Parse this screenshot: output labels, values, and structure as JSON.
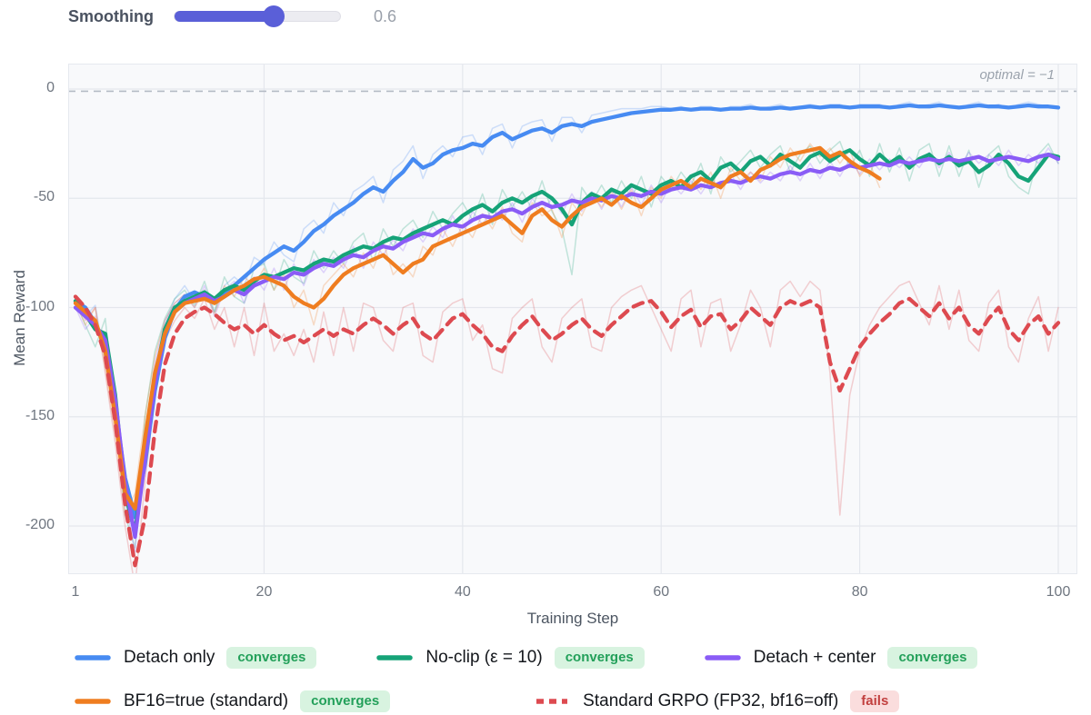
{
  "slider": {
    "label": "Smoothing",
    "value": "0.6",
    "fraction": 0.6,
    "accent_color": "#5a5fd8",
    "track_color": "#ececf1"
  },
  "chart_data": {
    "type": "line",
    "xlabel": "Training Step",
    "ylabel": "Mean Reward",
    "xticks": [
      1,
      20,
      40,
      60,
      80,
      100
    ],
    "yticks": [
      0,
      -50,
      -100,
      -150,
      -200
    ],
    "xlim": [
      0.4,
      102
    ],
    "ylim": [
      -222,
      11
    ],
    "grid": true,
    "panel_bg": "#f8f9fb",
    "grid_color": "#e4e7ed",
    "optimal_line": {
      "value": -1,
      "label": "optimal = −1",
      "color": "#b4bac4"
    },
    "x_start": 1,
    "series": [
      {
        "name": "Detach only",
        "badge": "converges",
        "color": "#478bf2",
        "dashed": false,
        "values": [
          -97,
          -100,
          -107,
          -118,
          -145,
          -178,
          -196,
          -172,
          -138,
          -114,
          -101,
          -95,
          -93,
          -95,
          -97,
          -94,
          -90,
          -86,
          -82,
          -78,
          -75,
          -72,
          -74,
          -70,
          -65,
          -62,
          -58,
          -55,
          -52,
          -48,
          -45,
          -47,
          -42,
          -38,
          -32,
          -36,
          -34,
          -30,
          -28,
          -27,
          -25,
          -26,
          -22,
          -20,
          -23,
          -21,
          -19,
          -18,
          -20,
          -17,
          -16,
          -17,
          -15,
          -14,
          -13,
          -12,
          -11,
          -10.5,
          -10,
          -9.5,
          -9.5,
          -9,
          -9.5,
          -9,
          -9,
          -9.5,
          -9,
          -9,
          -8.5,
          -9,
          -9,
          -8.5,
          -9,
          -8.5,
          -8,
          -8.5,
          -8,
          -8,
          -8.5,
          -8,
          -8,
          -8,
          -8.5,
          -8,
          -7.5,
          -8,
          -8,
          -7.5,
          -8,
          -8.5,
          -8,
          -7.5,
          -8,
          -8,
          -8.5,
          -8,
          -7.5,
          -8,
          -8,
          -8.5
        ],
        "raw": [
          -97,
          -104,
          -99,
          -125,
          -152,
          -185,
          -200,
          -160,
          -130,
          -108,
          -96,
          -90,
          -97,
          -92,
          -102,
          -90,
          -86,
          -90,
          -77,
          -80,
          -70,
          -76,
          -79,
          -64,
          -60,
          -66,
          -52,
          -58,
          -47,
          -44,
          -40,
          -52,
          -37,
          -33,
          -26,
          -41,
          -30,
          -26,
          -31,
          -22,
          -21,
          -30,
          -18,
          -16,
          -27,
          -17,
          -15,
          -14,
          -24,
          -13,
          -13,
          -20,
          -12,
          -11,
          -10,
          -9,
          -9,
          -9,
          -8,
          -8,
          -9,
          -8,
          -10,
          -8,
          -8,
          -10,
          -8,
          -8,
          -7,
          -9,
          -8,
          -7,
          -9,
          -8,
          -7,
          -8,
          -7,
          -7,
          -9,
          -7,
          -7,
          -7,
          -9,
          -7,
          -6,
          -8,
          -7,
          -6,
          -8,
          -9,
          -7,
          -6,
          -8,
          -7,
          -9,
          -7,
          -6,
          -7,
          -8,
          -9
        ]
      },
      {
        "name": "No-clip (ε = 10)",
        "badge": "converges",
        "color": "#16a378",
        "dashed": false,
        "values": [
          -97,
          -103,
          -110,
          -112,
          -140,
          -185,
          -203,
          -168,
          -132,
          -110,
          -100,
          -97,
          -95,
          -93,
          -96,
          -92,
          -90,
          -92,
          -88,
          -85,
          -86,
          -84,
          -82,
          -83,
          -80,
          -78,
          -79,
          -76,
          -74,
          -72,
          -73,
          -70,
          -68,
          -69,
          -66,
          -64,
          -62,
          -60,
          -62,
          -58,
          -55,
          -53,
          -56,
          -52,
          -50,
          -52,
          -49,
          -47,
          -50,
          -55,
          -62,
          -52,
          -48,
          -50,
          -46,
          -48,
          -44,
          -46,
          -48,
          -44,
          -42,
          -45,
          -40,
          -38,
          -42,
          -36,
          -34,
          -38,
          -33,
          -31,
          -35,
          -30,
          -33,
          -36,
          -31,
          -29,
          -33,
          -30,
          -28,
          -32,
          -35,
          -30,
          -34,
          -31,
          -36,
          -32,
          -30,
          -34,
          -31,
          -35,
          -33,
          -38,
          -35,
          -30,
          -34,
          -40,
          -42,
          -36,
          -30,
          -31
        ],
        "raw": [
          -97,
          -108,
          -118,
          -105,
          -150,
          -195,
          -210,
          -150,
          -120,
          -105,
          -96,
          -92,
          -99,
          -88,
          -102,
          -86,
          -95,
          -98,
          -82,
          -80,
          -92,
          -78,
          -86,
          -89,
          -74,
          -82,
          -74,
          -80,
          -70,
          -66,
          -79,
          -64,
          -72,
          -64,
          -60,
          -68,
          -56,
          -64,
          -57,
          -52,
          -60,
          -48,
          -62,
          -46,
          -54,
          -47,
          -55,
          -42,
          -56,
          -64,
          -85,
          -45,
          -52,
          -44,
          -52,
          -42,
          -50,
          -40,
          -54,
          -40,
          -46,
          -38,
          -44,
          -34,
          -48,
          -31,
          -38,
          -33,
          -28,
          -36,
          -30,
          -26,
          -38,
          -30,
          -26,
          -34,
          -28,
          -24,
          -36,
          -28,
          -40,
          -25,
          -38,
          -27,
          -42,
          -28,
          -25,
          -40,
          -26,
          -40,
          -28,
          -45,
          -30,
          -26,
          -40,
          -45,
          -48,
          -30,
          -25,
          -34
        ]
      },
      {
        "name": "Detach + center",
        "badge": "converges",
        "color": "#8a5cf6",
        "dashed": false,
        "values": [
          -100,
          -104,
          -108,
          -115,
          -142,
          -180,
          -205,
          -170,
          -135,
          -112,
          -102,
          -98,
          -96,
          -94,
          -97,
          -95,
          -92,
          -94,
          -90,
          -88,
          -86,
          -87,
          -84,
          -85,
          -82,
          -80,
          -81,
          -78,
          -76,
          -77,
          -74,
          -72,
          -73,
          -70,
          -68,
          -66,
          -67,
          -64,
          -62,
          -63,
          -60,
          -58,
          -59,
          -56,
          -55,
          -57,
          -54,
          -52,
          -54,
          -53,
          -51,
          -52,
          -50,
          -51,
          -49,
          -50,
          -48,
          -49,
          -47,
          -48,
          -46,
          -45,
          -46,
          -44,
          -45,
          -43,
          -42,
          -43,
          -41,
          -40,
          -41,
          -39,
          -38,
          -39,
          -37,
          -38,
          -36,
          -37,
          -35,
          -36,
          -35,
          -34,
          -35,
          -33,
          -34,
          -33,
          -32,
          -33,
          -32,
          -33,
          -32,
          -31,
          -33,
          -32,
          -31,
          -32,
          -33,
          -31,
          -30,
          -32
        ],
        "raw": [
          -100,
          -110,
          -104,
          -122,
          -150,
          -188,
          -212,
          -158,
          -125,
          -106,
          -98,
          -94,
          -100,
          -90,
          -104,
          -92,
          -88,
          -98,
          -86,
          -92,
          -82,
          -92,
          -80,
          -90,
          -78,
          -84,
          -77,
          -82,
          -72,
          -82,
          -70,
          -76,
          -69,
          -74,
          -64,
          -70,
          -63,
          -68,
          -58,
          -67,
          -56,
          -62,
          -55,
          -60,
          -52,
          -61,
          -50,
          -56,
          -50,
          -57,
          -48,
          -56,
          -47,
          -55,
          -46,
          -54,
          -45,
          -53,
          -44,
          -52,
          -43,
          -48,
          -42,
          -48,
          -41,
          -46,
          -39,
          -46,
          -38,
          -43,
          -38,
          -42,
          -35,
          -42,
          -34,
          -41,
          -33,
          -40,
          -32,
          -39,
          -32,
          -37,
          -32,
          -36,
          -31,
          -36,
          -29,
          -36,
          -29,
          -36,
          -29,
          -34,
          -30,
          -35,
          -28,
          -35,
          -30,
          -34,
          -27,
          -34
        ]
      },
      {
        "name": "BF16=true (standard)",
        "badge": "converges",
        "color": "#ef7d20",
        "dashed": false,
        "values": [
          -98,
          -102,
          -106,
          -120,
          -150,
          -185,
          -192,
          -160,
          -130,
          -112,
          -102,
          -98,
          -97,
          -96,
          -98,
          -95,
          -92,
          -90,
          -87,
          -86,
          -88,
          -90,
          -95,
          -98,
          -100,
          -96,
          -90,
          -85,
          -82,
          -80,
          -78,
          -76,
          -80,
          -84,
          -80,
          -78,
          -72,
          -70,
          -68,
          -66,
          -64,
          -62,
          -60,
          -58,
          -62,
          -66,
          -58,
          -55,
          -60,
          -63,
          -58,
          -54,
          -52,
          -50,
          -53,
          -49,
          -52,
          -54,
          -50,
          -46,
          -44,
          -42,
          -45,
          -41,
          -43,
          -45,
          -40,
          -38,
          -42,
          -37,
          -35,
          -32,
          -30,
          -29,
          -28,
          -27,
          -31,
          -29,
          -33,
          -36,
          -38,
          -41
        ],
        "raw": [
          -98,
          -108,
          -100,
          -128,
          -158,
          -195,
          -185,
          -150,
          -122,
          -106,
          -98,
          -94,
          -100,
          -92,
          -103,
          -90,
          -95,
          -86,
          -90,
          -82,
          -92,
          -85,
          -100,
          -92,
          -108,
          -90,
          -85,
          -80,
          -86,
          -75,
          -82,
          -70,
          -85,
          -80,
          -86,
          -72,
          -76,
          -64,
          -72,
          -62,
          -68,
          -57,
          -64,
          -54,
          -66,
          -70,
          -52,
          -58,
          -55,
          -68,
          -52,
          -58,
          -48,
          -54,
          -47,
          -55,
          -46,
          -58,
          -45,
          -50,
          -40,
          -46,
          -40,
          -46,
          -38,
          -50,
          -36,
          -42,
          -38,
          -42,
          -31,
          -36,
          -27,
          -33,
          -25,
          -31,
          -27,
          -34,
          -28,
          -40,
          -34,
          -45
        ]
      },
      {
        "name": "Standard GRPO (FP32, bf16=off)",
        "badge": "fails",
        "color": "#dd4a50",
        "dashed": true,
        "values": [
          -95,
          -100,
          -108,
          -122,
          -152,
          -190,
          -218,
          -196,
          -156,
          -126,
          -112,
          -105,
          -102,
          -100,
          -103,
          -107,
          -110,
          -108,
          -112,
          -108,
          -112,
          -115,
          -113,
          -116,
          -113,
          -110,
          -113,
          -110,
          -112,
          -108,
          -105,
          -108,
          -112,
          -108,
          -105,
          -112,
          -115,
          -110,
          -105,
          -103,
          -108,
          -112,
          -118,
          -120,
          -113,
          -108,
          -104,
          -110,
          -115,
          -112,
          -108,
          -105,
          -110,
          -113,
          -108,
          -104,
          -100,
          -98,
          -97,
          -102,
          -109,
          -104,
          -101,
          -109,
          -104,
          -103,
          -110,
          -106,
          -100,
          -104,
          -108,
          -100,
          -97,
          -99,
          -97,
          -100,
          -125,
          -138,
          -128,
          -118,
          -112,
          -107,
          -103,
          -98,
          -96,
          -100,
          -104,
          -98,
          -105,
          -100,
          -108,
          -112,
          -105,
          -100,
          -110,
          -115,
          -108,
          -104,
          -112,
          -107
        ],
        "raw": [
          -95,
          -106,
          -100,
          -130,
          -162,
          -200,
          -228,
          -180,
          -140,
          -115,
          -106,
          -100,
          -105,
          -96,
          -110,
          -100,
          -118,
          -100,
          -122,
          -98,
          -120,
          -112,
          -122,
          -110,
          -125,
          -102,
          -122,
          -100,
          -120,
          -98,
          -100,
          -115,
          -120,
          -100,
          -98,
          -122,
          -125,
          -102,
          -98,
          -96,
          -115,
          -108,
          -128,
          -130,
          -105,
          -100,
          -96,
          -118,
          -125,
          -105,
          -100,
          -96,
          -118,
          -120,
          -100,
          -95,
          -92,
          -90,
          -100,
          -110,
          -120,
          -96,
          -92,
          -118,
          -98,
          -96,
          -120,
          -108,
          -92,
          -100,
          -118,
          -92,
          -88,
          -95,
          -88,
          -92,
          -130,
          -195,
          -140,
          -120,
          -108,
          -100,
          -95,
          -90,
          -88,
          -98,
          -108,
          -90,
          -110,
          -92,
          -115,
          -120,
          -98,
          -92,
          -118,
          -125,
          -105,
          -95,
          -120,
          -100
        ]
      }
    ]
  },
  "legend": {
    "rows": [
      [
        0,
        1,
        2
      ],
      [
        3,
        4
      ]
    ]
  },
  "badge_styles": {
    "converges": {
      "bg": "#d8f3e0",
      "color": "#23a05a"
    },
    "fails": {
      "bg": "#fadddd",
      "color": "#c2403f"
    }
  }
}
